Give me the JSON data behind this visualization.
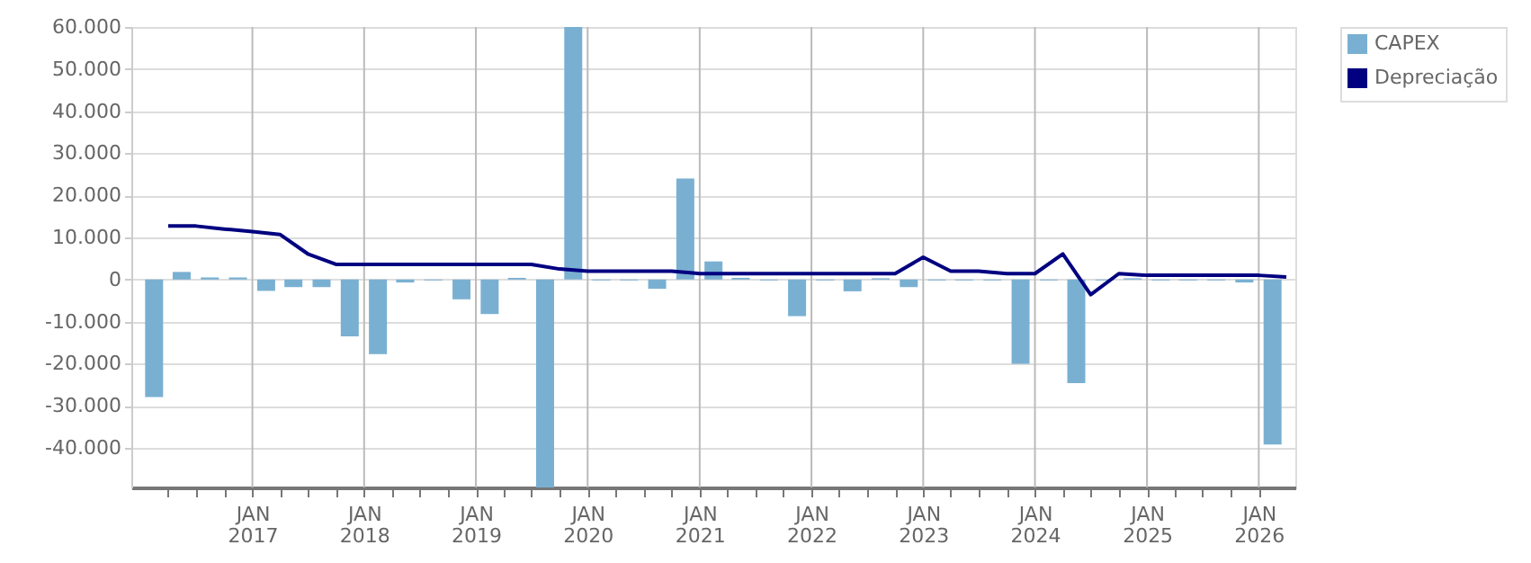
{
  "chart_data": {
    "type": "bar",
    "xlim": [
      "2016-01-01",
      "2026-04-01"
    ],
    "xticks": [
      {
        "value": "2016-04-01",
        "label": null
      },
      {
        "value": "2016-07-01",
        "label": null
      },
      {
        "value": "2016-10-01",
        "label": null
      },
      {
        "value": "2017-01-01",
        "label": "JAN 2017"
      },
      {
        "value": "2017-04-01",
        "label": null
      },
      {
        "value": "2017-07-01",
        "label": null
      },
      {
        "value": "2017-10-01",
        "label": null
      },
      {
        "value": "2018-01-01",
        "label": "JAN 2018"
      },
      {
        "value": "2018-04-01",
        "label": null
      },
      {
        "value": "2018-07-01",
        "label": null
      },
      {
        "value": "2018-10-01",
        "label": null
      },
      {
        "value": "2019-01-01",
        "label": "JAN 2019"
      },
      {
        "value": "2019-04-01",
        "label": null
      },
      {
        "value": "2019-07-01",
        "label": null
      },
      {
        "value": "2019-10-01",
        "label": null
      },
      {
        "value": "2020-01-01",
        "label": "JAN 2020"
      },
      {
        "value": "2020-04-01",
        "label": null
      },
      {
        "value": "2020-07-01",
        "label": null
      },
      {
        "value": "2020-10-01",
        "label": null
      },
      {
        "value": "2021-01-01",
        "label": "JAN 2021"
      },
      {
        "value": "2021-04-01",
        "label": null
      },
      {
        "value": "2021-07-01",
        "label": null
      },
      {
        "value": "2021-10-01",
        "label": null
      },
      {
        "value": "2022-01-01",
        "label": "JAN 2022"
      },
      {
        "value": "2022-04-01",
        "label": null
      },
      {
        "value": "2022-07-01",
        "label": null
      },
      {
        "value": "2022-10-01",
        "label": null
      },
      {
        "value": "2023-01-01",
        "label": "JAN 2023"
      },
      {
        "value": "2023-04-01",
        "label": null
      },
      {
        "value": "2023-07-01",
        "label": null
      },
      {
        "value": "2023-10-01",
        "label": null
      },
      {
        "value": "2024-01-01",
        "label": "JAN 2024"
      },
      {
        "value": "2024-04-01",
        "label": null
      },
      {
        "value": "2024-07-01",
        "label": null
      },
      {
        "value": "2024-10-01",
        "label": null
      },
      {
        "value": "2025-01-01",
        "label": "JAN 2025"
      },
      {
        "value": "2025-04-01",
        "label": null
      },
      {
        "value": "2025-07-01",
        "label": null
      },
      {
        "value": "2025-10-01",
        "label": null
      },
      {
        "value": "2026-01-01",
        "label": "JAN 2026"
      }
    ],
    "ylim": [
      -49400,
      60000
    ],
    "yticks": [
      {
        "value": -40000,
        "label": "-40.000"
      },
      {
        "value": -30000,
        "label": "-30.000"
      },
      {
        "value": -20000,
        "label": "-20.000"
      },
      {
        "value": -10000,
        "label": "-10.000"
      },
      0,
      {
        "value": 10000,
        "label": "10.000"
      },
      {
        "value": 20000,
        "label": "20.000"
      },
      {
        "value": 30000,
        "label": "30.000"
      },
      {
        "value": 40000,
        "label": "40.000"
      },
      {
        "value": 50000,
        "label": "50.000"
      },
      {
        "value": 60000,
        "label": "60.000"
      }
    ],
    "grid": true,
    "legend": "top right",
    "series": [
      {
        "name": "CAPEX",
        "color": "#79b0d2",
        "x": [
          "2016-02-15",
          "2016-05-15",
          "2016-08-15",
          "2016-11-15",
          "2017-02-15",
          "2017-05-15",
          "2017-08-15",
          "2017-11-15",
          "2018-02-15",
          "2018-05-15",
          "2018-08-15",
          "2018-11-15",
          "2019-02-15",
          "2019-05-15",
          "2019-08-15",
          "2019-11-15",
          "2020-02-15",
          "2020-05-15",
          "2020-08-15",
          "2020-11-15",
          "2021-02-15",
          "2021-05-15",
          "2021-08-15",
          "2021-11-15",
          "2022-02-15",
          "2022-05-15",
          "2022-08-15",
          "2022-11-15",
          "2023-02-15",
          "2023-05-15",
          "2023-08-15",
          "2023-11-15",
          "2024-02-15",
          "2024-05-15",
          "2024-08-15",
          "2024-11-15",
          "2025-02-15",
          "2025-05-15",
          "2025-08-15",
          "2025-11-15",
          "2026-02-15"
        ],
        "values": [
          -27900,
          1800,
          500,
          500,
          -2700,
          -1800,
          -1800,
          -13500,
          -17700,
          -700,
          -200,
          -4700,
          -8200,
          400,
          -49400,
          60000,
          -200,
          -200,
          -2200,
          24000,
          4300,
          400,
          -200,
          -8700,
          -200,
          -2800,
          300,
          -1800,
          -200,
          -200,
          -200,
          -20000,
          -200,
          -24600,
          -200,
          300,
          -200,
          -200,
          -200,
          -700,
          -39200
        ]
      },
      {
        "name": "Depreciação",
        "type": "line",
        "color": "#000080",
        "x": [
          "2016-04-01",
          "2016-07-01",
          "2016-10-01",
          "2017-01-01",
          "2017-04-01",
          "2017-07-01",
          "2017-10-01",
          "2018-01-01",
          "2018-04-01",
          "2018-07-01",
          "2018-10-01",
          "2019-01-01",
          "2019-04-01",
          "2019-07-01",
          "2019-10-01",
          "2020-01-01",
          "2020-04-01",
          "2020-07-01",
          "2020-10-01",
          "2021-01-01",
          "2021-04-01",
          "2021-07-01",
          "2021-10-01",
          "2022-01-01",
          "2022-04-01",
          "2022-07-01",
          "2022-10-01",
          "2023-01-01",
          "2023-04-01",
          "2023-07-01",
          "2023-10-01",
          "2024-01-01",
          "2024-04-01",
          "2024-07-01",
          "2024-10-01",
          "2025-01-01",
          "2025-04-01",
          "2025-07-01",
          "2025-10-01",
          "2026-01-01",
          "2026-04-01"
        ],
        "values": [
          12700,
          12700,
          12000,
          11400,
          10700,
          6100,
          3600,
          3600,
          3600,
          3600,
          3600,
          3600,
          3600,
          3600,
          2500,
          2000,
          2000,
          2000,
          2000,
          1400,
          1400,
          1400,
          1400,
          1400,
          1400,
          1400,
          1400,
          5300,
          2000,
          2000,
          1400,
          1400,
          6100,
          -3600,
          1400,
          1000,
          1000,
          1000,
          1000,
          1000,
          600
        ]
      }
    ]
  }
}
